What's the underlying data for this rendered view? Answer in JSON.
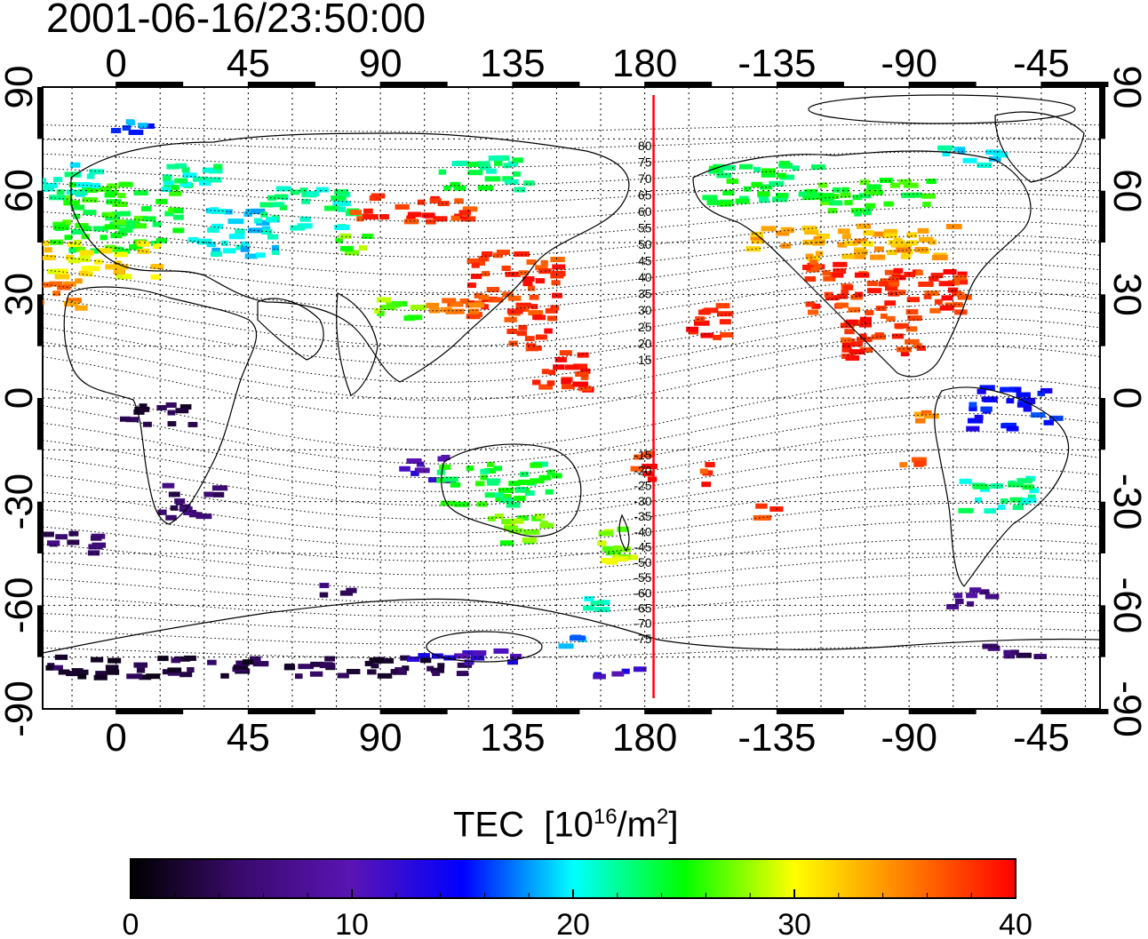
{
  "timestamp": "2001-06-16/23:50:00",
  "colorbar": {
    "title_main": "TEC",
    "title_unit_prefix": "[10",
    "title_unit_exp": "16",
    "title_unit_mid": "/m",
    "title_unit_exp2": "2",
    "title_unit_suffix": "]",
    "ticks": [
      {
        "value": 0,
        "label": "0"
      },
      {
        "value": 10,
        "label": "10"
      },
      {
        "value": 20,
        "label": "20"
      },
      {
        "value": 30,
        "label": "30"
      },
      {
        "value": 40,
        "label": "40"
      }
    ],
    "range": [
      0,
      40
    ],
    "stops": [
      "#000000",
      "#3a0a6e",
      "#5a14b4",
      "#0000ff",
      "#00ffff",
      "#00ff00",
      "#ffff00",
      "#ff8000",
      "#ff0000"
    ]
  },
  "axes": {
    "lon_ticks": [
      {
        "value": 0,
        "label": "0"
      },
      {
        "value": 45,
        "label": "45"
      },
      {
        "value": 90,
        "label": "90"
      },
      {
        "value": 135,
        "label": "135"
      },
      {
        "value": 180,
        "label": "180"
      },
      {
        "value": 225,
        "label": "-135"
      },
      {
        "value": 270,
        "label": "-90"
      },
      {
        "value": 315,
        "label": "-45"
      }
    ],
    "lat_ticks": [
      {
        "value": 90,
        "label": "90"
      },
      {
        "value": 60,
        "label": "60"
      },
      {
        "value": 30,
        "label": "30"
      },
      {
        "value": 0,
        "label": "0"
      },
      {
        "value": -30,
        "label": "-30"
      },
      {
        "value": -60,
        "label": "-60"
      },
      {
        "value": -90,
        "label": "-90"
      }
    ],
    "lon_range": [
      -25,
      335
    ],
    "lat_range": [
      -90,
      90
    ]
  },
  "meridian_line": {
    "lon": 183,
    "color": "#ff0000"
  },
  "contour_labels": [
    "80",
    "75",
    "70",
    "65",
    "60",
    "55",
    "50",
    "45",
    "40",
    "35",
    "30",
    "25",
    "20",
    "15",
    "-15",
    "-20",
    "-25",
    "-30",
    "-35",
    "-40",
    "-45",
    "-50",
    "-55",
    "-60",
    "-65",
    "-70",
    "-75"
  ],
  "tec_patches": [
    {
      "lon": 0,
      "lat": 52,
      "w": 45,
      "h": 20,
      "tec": 25
    },
    {
      "lon": -15,
      "lat": 63,
      "w": 20,
      "h": 10,
      "tec": 21
    },
    {
      "lon": 25,
      "lat": 64,
      "w": 20,
      "h": 10,
      "tec": 22
    },
    {
      "lon": -5,
      "lat": 40,
      "w": 40,
      "h": 10,
      "tec": 31
    },
    {
      "lon": -20,
      "lat": 30,
      "w": 15,
      "h": 8,
      "tec": 35
    },
    {
      "lon": 40,
      "lat": 48,
      "w": 30,
      "h": 14,
      "tec": 20
    },
    {
      "lon": 5,
      "lat": 78,
      "w": 20,
      "h": 4,
      "tec": 17
    },
    {
      "lon": 65,
      "lat": 55,
      "w": 30,
      "h": 12,
      "tec": 22
    },
    {
      "lon": 80,
      "lat": 45,
      "w": 12,
      "h": 6,
      "tec": 27
    },
    {
      "lon": 100,
      "lat": 55,
      "w": 40,
      "h": 8,
      "tec": 38
    },
    {
      "lon": 135,
      "lat": 33,
      "w": 30,
      "h": 20,
      "tec": 38
    },
    {
      "lon": 115,
      "lat": 28,
      "w": 20,
      "h": 8,
      "tec": 36
    },
    {
      "lon": 140,
      "lat": 20,
      "w": 15,
      "h": 12,
      "tec": 38
    },
    {
      "lon": 150,
      "lat": 8,
      "w": 20,
      "h": 12,
      "tec": 39
    },
    {
      "lon": 125,
      "lat": 65,
      "w": 30,
      "h": 10,
      "tec": 23
    },
    {
      "lon": 95,
      "lat": 25,
      "w": 15,
      "h": 8,
      "tec": 27
    },
    {
      "lon": 15,
      "lat": -5,
      "w": 25,
      "h": 6,
      "tec": 3
    },
    {
      "lon": 25,
      "lat": -30,
      "w": 20,
      "h": 10,
      "tec": 5
    },
    {
      "lon": -15,
      "lat": -42,
      "w": 25,
      "h": 6,
      "tec": 5
    },
    {
      "lon": 75,
      "lat": -55,
      "w": 10,
      "h": 4,
      "tec": 5
    },
    {
      "lon": 105,
      "lat": -20,
      "w": 15,
      "h": 8,
      "tec": 11
    },
    {
      "lon": 130,
      "lat": -25,
      "w": 40,
      "h": 12,
      "tec": 24
    },
    {
      "lon": 140,
      "lat": -38,
      "w": 25,
      "h": 8,
      "tec": 27
    },
    {
      "lon": 170,
      "lat": -45,
      "w": 12,
      "h": 14,
      "tec": 28
    },
    {
      "lon": 160,
      "lat": -60,
      "w": 15,
      "h": 4,
      "tec": 22
    },
    {
      "lon": 180,
      "lat": -20,
      "w": 10,
      "h": 8,
      "tec": 38
    },
    {
      "lon": 200,
      "lat": -22,
      "w": 8,
      "h": 6,
      "tec": 38
    },
    {
      "lon": 222,
      "lat": -33,
      "w": 8,
      "h": 4,
      "tec": 38
    },
    {
      "lon": 200,
      "lat": 22,
      "w": 15,
      "h": 10,
      "tec": 39
    },
    {
      "lon": 220,
      "lat": 62,
      "w": 40,
      "h": 12,
      "tec": 24
    },
    {
      "lon": 260,
      "lat": 58,
      "w": 40,
      "h": 10,
      "tec": 25
    },
    {
      "lon": 250,
      "lat": 45,
      "w": 70,
      "h": 10,
      "tec": 33
    },
    {
      "lon": 262,
      "lat": 32,
      "w": 55,
      "h": 15,
      "tec": 38
    },
    {
      "lon": 262,
      "lat": 18,
      "w": 30,
      "h": 14,
      "tec": 38
    },
    {
      "lon": 290,
      "lat": 70,
      "w": 20,
      "h": 6,
      "tec": 20
    },
    {
      "lon": 305,
      "lat": -3,
      "w": 30,
      "h": 12,
      "tec": 15
    },
    {
      "lon": 300,
      "lat": -28,
      "w": 25,
      "h": 10,
      "tec": 22
    },
    {
      "lon": 290,
      "lat": -58,
      "w": 15,
      "h": 6,
      "tec": 7
    },
    {
      "lon": 305,
      "lat": -73,
      "w": 20,
      "h": 4,
      "tec": 5
    },
    {
      "lon": 30,
      "lat": -78,
      "w": 180,
      "h": 6,
      "tec": 3
    },
    {
      "lon": 120,
      "lat": -75,
      "w": 40,
      "h": 4,
      "tec": 12
    },
    {
      "lon": 170,
      "lat": -80,
      "w": 15,
      "h": 4,
      "tec": 12
    },
    {
      "lon": 155,
      "lat": -70,
      "w": 10,
      "h": 4,
      "tec": 18
    },
    {
      "lon": 270,
      "lat": -18,
      "w": 10,
      "h": 4,
      "tec": 37
    },
    {
      "lon": 275,
      "lat": -5,
      "w": 8,
      "h": 4,
      "tec": 35
    }
  ]
}
